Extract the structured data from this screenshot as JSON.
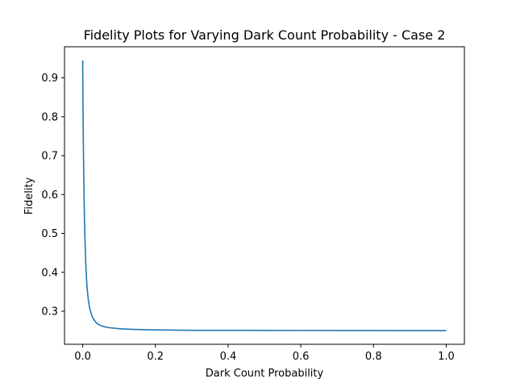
{
  "chart_data": {
    "type": "line",
    "title": "Fidelity Plots for Varying Dark Count Probability - Case 2",
    "xlabel": "Dark Count Probability",
    "ylabel": "Fidelity",
    "xlim": [
      -0.05,
      1.05
    ],
    "ylim": [
      0.215,
      0.98
    ],
    "xticks": [
      0.0,
      0.2,
      0.4,
      0.6,
      0.8,
      1.0
    ],
    "xtick_labels": [
      "0.0",
      "0.2",
      "0.4",
      "0.6",
      "0.8",
      "1.0"
    ],
    "yticks": [
      0.3,
      0.4,
      0.5,
      0.6,
      0.7,
      0.8,
      0.9
    ],
    "ytick_labels": [
      "0.3",
      "0.4",
      "0.5",
      "0.6",
      "0.7",
      "0.8",
      "0.9"
    ],
    "grid": false,
    "legend": false,
    "series": [
      {
        "color": "#1f77b4",
        "x": [
          0.0,
          0.001,
          0.002,
          0.003,
          0.004,
          0.005,
          0.006,
          0.008,
          0.01,
          0.012,
          0.015,
          0.018,
          0.02,
          0.025,
          0.03,
          0.035,
          0.04,
          0.05,
          0.06,
          0.07,
          0.08,
          0.1,
          0.12,
          0.15,
          0.2,
          0.25,
          0.3,
          0.4,
          0.5,
          0.6,
          0.7,
          0.8,
          0.9,
          1.0
        ],
        "y": [
          0.945,
          0.815,
          0.72,
          0.645,
          0.585,
          0.535,
          0.495,
          0.435,
          0.392,
          0.362,
          0.333,
          0.314,
          0.305,
          0.289,
          0.279,
          0.273,
          0.268,
          0.263,
          0.26,
          0.258,
          0.257,
          0.255,
          0.254,
          0.253,
          0.252,
          0.2515,
          0.251,
          0.2508,
          0.2506,
          0.2505,
          0.2504,
          0.2503,
          0.2502,
          0.2501
        ]
      }
    ]
  }
}
